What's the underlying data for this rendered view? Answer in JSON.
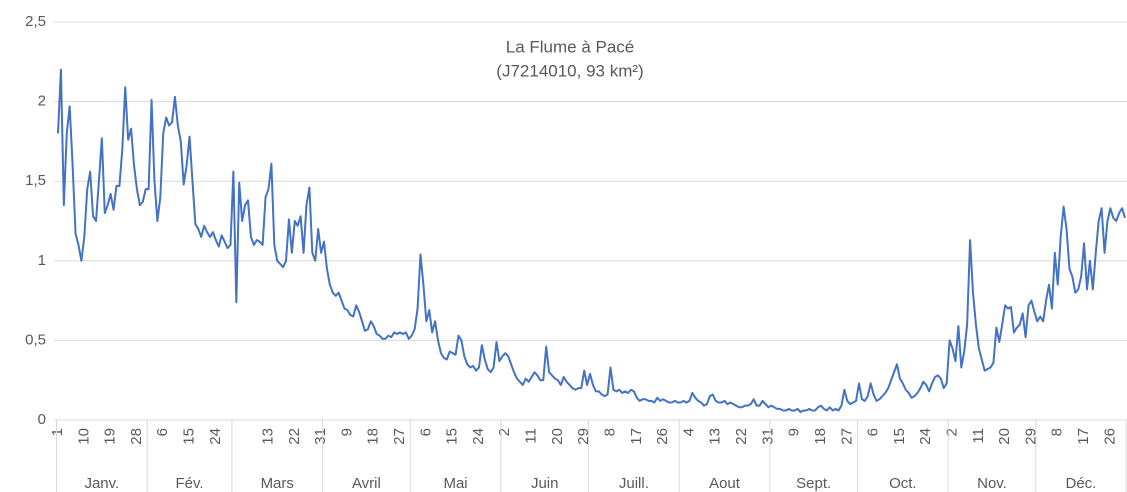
{
  "chart_data": {
    "type": "line",
    "title": "La Flume à Pacé",
    "subtitle": "(J7214010, 93 km²)",
    "months": [
      "Janv.",
      "Fév.",
      "Mars",
      "Avril",
      "Mai",
      "Juin",
      "Juill.",
      "Aout",
      "Sept.",
      "Oct.",
      "Nov.",
      "Déc."
    ],
    "categories": [
      "1",
      null,
      null,
      null,
      null,
      null,
      null,
      null,
      null,
      "10",
      null,
      null,
      null,
      null,
      null,
      null,
      null,
      null,
      "19",
      null,
      null,
      null,
      null,
      null,
      null,
      null,
      null,
      "28",
      null,
      null,
      null,
      null,
      null,
      null,
      null,
      null,
      "6",
      null,
      null,
      null,
      null,
      null,
      null,
      null,
      null,
      "15",
      null,
      null,
      null,
      null,
      null,
      null,
      null,
      null,
      "24",
      null,
      null,
      null,
      null,
      null,
      null,
      null,
      null,
      null,
      null,
      null,
      null,
      null,
      null,
      null,
      null,
      null,
      "13",
      null,
      null,
      null,
      null,
      null,
      null,
      null,
      null,
      "22",
      null,
      null,
      null,
      null,
      null,
      null,
      null,
      null,
      "31",
      null,
      null,
      null,
      null,
      null,
      null,
      null,
      null,
      "9",
      null,
      null,
      null,
      null,
      null,
      null,
      null,
      null,
      "18",
      null,
      null,
      null,
      null,
      null,
      null,
      null,
      null,
      "27",
      null,
      null,
      null,
      null,
      null,
      null,
      null,
      null,
      "6",
      null,
      null,
      null,
      null,
      null,
      null,
      null,
      null,
      "15",
      null,
      null,
      null,
      null,
      null,
      null,
      null,
      null,
      "24",
      null,
      null,
      null,
      null,
      null,
      null,
      null,
      null,
      "2",
      null,
      null,
      null,
      null,
      null,
      null,
      null,
      null,
      "11",
      null,
      null,
      null,
      null,
      null,
      null,
      null,
      null,
      "20",
      null,
      null,
      null,
      null,
      null,
      null,
      null,
      null,
      "29",
      null,
      null,
      null,
      null,
      null,
      null,
      null,
      null,
      "8",
      null,
      null,
      null,
      null,
      null,
      null,
      null,
      null,
      "17",
      null,
      null,
      null,
      null,
      null,
      null,
      null,
      null,
      "26",
      null,
      null,
      null,
      null,
      null,
      null,
      null,
      null,
      "4",
      null,
      null,
      null,
      null,
      null,
      null,
      null,
      null,
      "13",
      null,
      null,
      null,
      null,
      null,
      null,
      null,
      null,
      "22",
      null,
      null,
      null,
      null,
      null,
      null,
      null,
      null,
      "31",
      null,
      null,
      null,
      null,
      null,
      null,
      null,
      null,
      "9",
      null,
      null,
      null,
      null,
      null,
      null,
      null,
      null,
      "18",
      null,
      null,
      null,
      null,
      null,
      null,
      null,
      null,
      "27",
      null,
      null,
      null,
      null,
      null,
      null,
      null,
      null,
      "6",
      null,
      null,
      null,
      null,
      null,
      null,
      null,
      null,
      "15",
      null,
      null,
      null,
      null,
      null,
      null,
      null,
      null,
      "24",
      null,
      null,
      null,
      null,
      null,
      null,
      null,
      null,
      "2",
      null,
      null,
      null,
      null,
      null,
      null,
      null,
      null,
      "11",
      null,
      null,
      null,
      null,
      null,
      null,
      null,
      null,
      "20",
      null,
      null,
      null,
      null,
      null,
      null,
      null,
      null,
      "29",
      null,
      null,
      null,
      null,
      null,
      null,
      null,
      null,
      "8",
      null,
      null,
      null,
      null,
      null,
      null,
      null,
      null,
      "17",
      null,
      null,
      null,
      null,
      null,
      null,
      null,
      null,
      "26",
      null,
      null,
      null,
      null,
      null
    ],
    "series": [
      {
        "name": "La Flume à Pacé",
        "color": "#4472c4",
        "values": [
          1.8,
          2.2,
          1.35,
          1.8,
          1.97,
          1.6,
          1.17,
          1.1,
          1.0,
          1.15,
          1.45,
          1.56,
          1.28,
          1.25,
          1.5,
          1.77,
          1.3,
          1.35,
          1.42,
          1.32,
          1.47,
          1.47,
          1.7,
          2.09,
          1.76,
          1.83,
          1.6,
          1.45,
          1.35,
          1.37,
          1.45,
          1.45,
          2.01,
          1.5,
          1.25,
          1.4,
          1.8,
          1.9,
          1.85,
          1.87,
          2.03,
          1.85,
          1.75,
          1.48,
          1.6,
          1.78,
          1.5,
          1.23,
          1.2,
          1.15,
          1.22,
          1.18,
          1.15,
          1.18,
          1.13,
          1.09,
          1.16,
          1.12,
          1.08,
          1.1,
          1.56,
          0.74,
          1.49,
          1.25,
          1.35,
          1.38,
          1.15,
          1.1,
          1.13,
          1.12,
          1.1,
          1.4,
          1.45,
          1.61,
          1.1,
          1.0,
          0.98,
          0.96,
          1.0,
          1.26,
          1.05,
          1.25,
          1.22,
          1.28,
          1.05,
          1.35,
          1.46,
          1.05,
          1.0,
          1.2,
          1.05,
          1.12,
          0.95,
          0.85,
          0.8,
          0.78,
          0.8,
          0.75,
          0.7,
          0.69,
          0.66,
          0.65,
          0.72,
          0.68,
          0.62,
          0.56,
          0.57,
          0.62,
          0.59,
          0.54,
          0.53,
          0.51,
          0.51,
          0.53,
          0.52,
          0.55,
          0.54,
          0.55,
          0.54,
          0.55,
          0.51,
          0.53,
          0.57,
          0.7,
          1.04,
          0.85,
          0.62,
          0.69,
          0.55,
          0.62,
          0.5,
          0.42,
          0.39,
          0.38,
          0.43,
          0.42,
          0.41,
          0.53,
          0.5,
          0.4,
          0.35,
          0.33,
          0.34,
          0.31,
          0.33,
          0.47,
          0.38,
          0.32,
          0.3,
          0.33,
          0.49,
          0.37,
          0.4,
          0.42,
          0.4,
          0.35,
          0.3,
          0.26,
          0.24,
          0.22,
          0.26,
          0.24,
          0.27,
          0.3,
          0.28,
          0.25,
          0.25,
          0.46,
          0.3,
          0.28,
          0.26,
          0.25,
          0.22,
          0.27,
          0.24,
          0.22,
          0.2,
          0.19,
          0.2,
          0.2,
          0.31,
          0.22,
          0.29,
          0.22,
          0.18,
          0.18,
          0.16,
          0.15,
          0.16,
          0.33,
          0.19,
          0.18,
          0.19,
          0.17,
          0.18,
          0.17,
          0.19,
          0.18,
          0.14,
          0.12,
          0.13,
          0.13,
          0.12,
          0.12,
          0.11,
          0.14,
          0.12,
          0.13,
          0.12,
          0.11,
          0.11,
          0.12,
          0.11,
          0.11,
          0.12,
          0.11,
          0.12,
          0.17,
          0.14,
          0.12,
          0.11,
          0.09,
          0.1,
          0.15,
          0.16,
          0.12,
          0.11,
          0.11,
          0.12,
          0.1,
          0.11,
          0.1,
          0.09,
          0.08,
          0.08,
          0.09,
          0.09,
          0.1,
          0.13,
          0.09,
          0.09,
          0.12,
          0.1,
          0.08,
          0.09,
          0.08,
          0.07,
          0.07,
          0.06,
          0.06,
          0.07,
          0.06,
          0.06,
          0.07,
          0.05,
          0.06,
          0.06,
          0.07,
          0.06,
          0.06,
          0.08,
          0.09,
          0.07,
          0.06,
          0.08,
          0.06,
          0.07,
          0.06,
          0.09,
          0.19,
          0.12,
          0.1,
          0.11,
          0.12,
          0.23,
          0.13,
          0.12,
          0.15,
          0.23,
          0.16,
          0.12,
          0.13,
          0.15,
          0.17,
          0.2,
          0.25,
          0.3,
          0.35,
          0.26,
          0.23,
          0.19,
          0.17,
          0.14,
          0.15,
          0.17,
          0.2,
          0.24,
          0.22,
          0.18,
          0.23,
          0.27,
          0.28,
          0.26,
          0.2,
          0.23,
          0.5,
          0.45,
          0.37,
          0.59,
          0.33,
          0.43,
          0.6,
          1.13,
          0.8,
          0.6,
          0.45,
          0.38,
          0.31,
          0.32,
          0.33,
          0.36,
          0.58,
          0.49,
          0.6,
          0.72,
          0.7,
          0.71,
          0.55,
          0.58,
          0.6,
          0.67,
          0.52,
          0.72,
          0.75,
          0.68,
          0.62,
          0.65,
          0.62,
          0.75,
          0.85,
          0.7,
          1.05,
          0.85,
          1.15,
          1.34,
          1.2,
          0.95,
          0.9,
          0.8,
          0.82,
          0.9,
          1.11,
          0.82,
          1.0,
          0.82,
          1.05,
          1.25,
          1.33,
          1.05,
          1.25,
          1.33,
          1.27,
          1.25,
          1.3,
          1.33,
          1.27
        ]
      }
    ],
    "ylim": [
      0,
      2.5
    ],
    "yticks": [
      0,
      {
        "value": 0.5,
        "label": "0,5"
      },
      1,
      {
        "value": 1.5,
        "label": "1,5"
      },
      2,
      {
        "value": 2.5,
        "label": "2,5"
      }
    ],
    "grid": true
  }
}
